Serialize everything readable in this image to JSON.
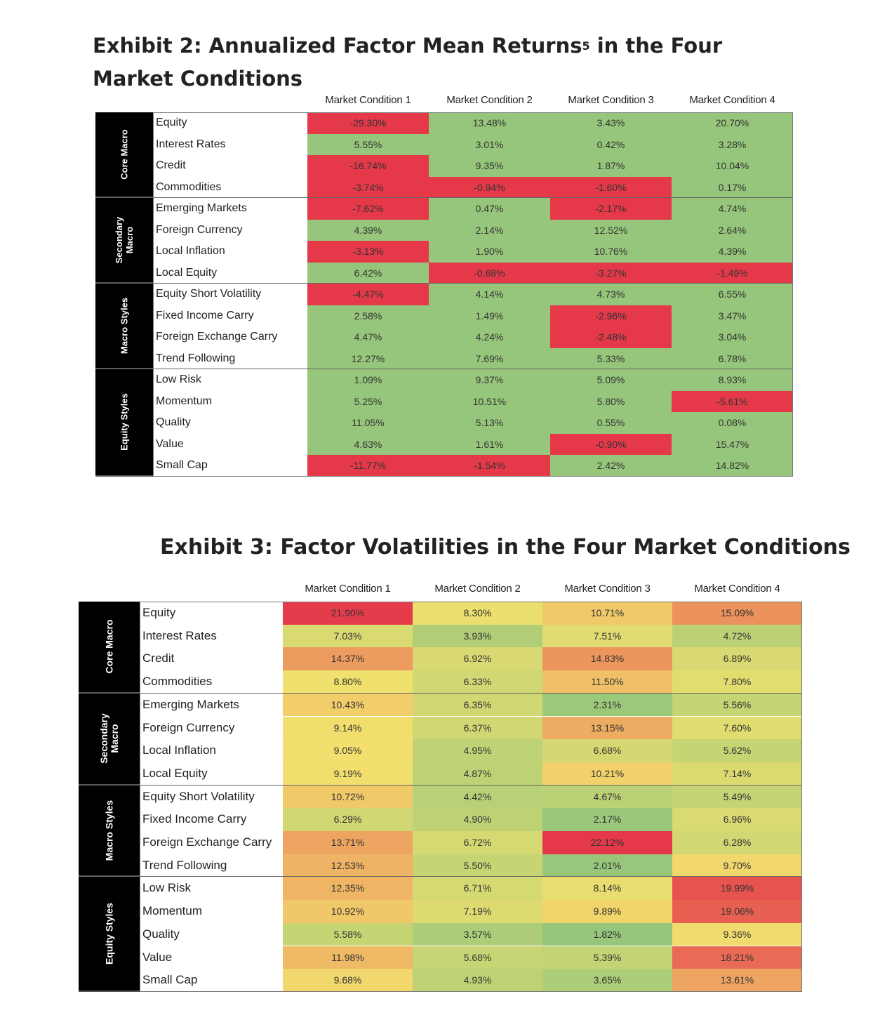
{
  "exhibit2": {
    "title": "Exhibit 2: Annualized Factor Mean Returns",
    "footnote_mark": "5",
    "title_suffix": " in the Four",
    "title_line2": "Market Conditions"
  },
  "exhibit3": {
    "title": "Exhibit 3: Factor Volatilities in the Four Market Conditions"
  },
  "colors": {
    "positive": "#96c67b",
    "negative": "#e5394a",
    "low": "#96c67b",
    "mid": "#f2e16e",
    "high": "#e5394a",
    "group_label_bg": "#000000"
  },
  "chart_data": [
    {
      "type": "table",
      "title": "Exhibit 2: Annualized Factor Mean Returns5 in the Four Market Conditions",
      "columns": [
        "Market Condition 1",
        "Market Condition 2",
        "Market Condition 3",
        "Market Condition 4"
      ],
      "groups": [
        {
          "name": "Core Macro",
          "rows": [
            {
              "label": "Equity",
              "values": [
                "-29.30%",
                "13.48%",
                "3.43%",
                "20.70%"
              ]
            },
            {
              "label": "Interest Rates",
              "values": [
                "5.55%",
                "3.01%",
                "0.42%",
                "3.28%"
              ]
            },
            {
              "label": "Credit",
              "values": [
                "-16.74%",
                "9.35%",
                "1.87%",
                "10.04%"
              ]
            },
            {
              "label": "Commodities",
              "values": [
                "-3.74%",
                "-0.94%",
                "-1.60%",
                "0.17%"
              ]
            }
          ]
        },
        {
          "name": "Secondary Macro",
          "rows": [
            {
              "label": "Emerging Markets",
              "values": [
                "-7.62%",
                "0.47%",
                "-2.17%",
                "4.74%"
              ]
            },
            {
              "label": "Foreign Currency",
              "values": [
                "4.39%",
                "2.14%",
                "12.52%",
                "2.64%"
              ]
            },
            {
              "label": "Local Inflation",
              "values": [
                "-3.13%",
                "1.90%",
                "10.76%",
                "4.39%"
              ]
            },
            {
              "label": "Local Equity",
              "values": [
                "6.42%",
                "-0.68%",
                "-3.27%",
                "-1.49%"
              ]
            }
          ]
        },
        {
          "name": "Macro Styles",
          "rows": [
            {
              "label": "Equity Short Volatility",
              "values": [
                "-4.47%",
                "4.14%",
                "4.73%",
                "6.55%"
              ]
            },
            {
              "label": "Fixed Income Carry",
              "values": [
                "2.58%",
                "1.49%",
                "-2.96%",
                "3.47%"
              ]
            },
            {
              "label": "Foreign Exchange Carry",
              "values": [
                "4.47%",
                "4.24%",
                "-2.48%",
                "3.04%"
              ]
            },
            {
              "label": "Trend Following",
              "values": [
                "12.27%",
                "7.69%",
                "5.33%",
                "6.78%"
              ]
            }
          ]
        },
        {
          "name": "Equity Styles",
          "rows": [
            {
              "label": "Low Risk",
              "values": [
                "1.09%",
                "9.37%",
                "5.09%",
                "8.93%"
              ]
            },
            {
              "label": "Momentum",
              "values": [
                "5.25%",
                "10.51%",
                "5.80%",
                "-5.61%"
              ]
            },
            {
              "label": "Quality",
              "values": [
                "11.05%",
                "5.13%",
                "0.55%",
                "0.08%"
              ]
            },
            {
              "label": "Value",
              "values": [
                "4.63%",
                "1.61%",
                "-0.90%",
                "15.47%"
              ]
            },
            {
              "label": "Small Cap",
              "values": [
                "-11.77%",
                "-1.54%",
                "2.42%",
                "14.82%"
              ]
            }
          ]
        }
      ]
    },
    {
      "type": "table",
      "title": "Exhibit 3: Factor Volatilities in the Four Market Conditions",
      "columns": [
        "Market Condition 1",
        "Market Condition 2",
        "Market Condition 3",
        "Market Condition 4"
      ],
      "groups": [
        {
          "name": "Core Macro",
          "rows": [
            {
              "label": "Equity",
              "values": [
                "21.90%",
                "8.30%",
                "10.71%",
                "15.09%"
              ]
            },
            {
              "label": "Interest Rates",
              "values": [
                "7.03%",
                "3.93%",
                "7.51%",
                "4.72%"
              ]
            },
            {
              "label": "Credit",
              "values": [
                "14.37%",
                "6.92%",
                "14.83%",
                "6.89%"
              ]
            },
            {
              "label": "Commodities",
              "values": [
                "8.80%",
                "6.33%",
                "11.50%",
                "7.80%"
              ]
            }
          ]
        },
        {
          "name": "Secondary Macro",
          "rows": [
            {
              "label": "Emerging Markets",
              "values": [
                "10.43%",
                "6.35%",
                "2.31%",
                "5.56%"
              ]
            },
            {
              "label": "Foreign Currency",
              "values": [
                "9.14%",
                "6.37%",
                "13.15%",
                "7.60%"
              ]
            },
            {
              "label": "Local Inflation",
              "values": [
                "9.05%",
                "4.95%",
                "6.68%",
                "5.62%"
              ]
            },
            {
              "label": "Local Equity",
              "values": [
                "9.19%",
                "4.87%",
                "10.21%",
                "7.14%"
              ]
            }
          ]
        },
        {
          "name": "Macro Styles",
          "rows": [
            {
              "label": "Equity Short Volatility",
              "values": [
                "10.72%",
                "4.42%",
                "4.67%",
                "5.49%"
              ]
            },
            {
              "label": "Fixed Income Carry",
              "values": [
                "6.29%",
                "4.90%",
                "2.17%",
                "6.96%"
              ]
            },
            {
              "label": "Foreign Exchange Carry",
              "values": [
                "13.71%",
                "6.72%",
                "22.12%",
                "6.28%"
              ]
            },
            {
              "label": "Trend Following",
              "values": [
                "12.53%",
                "5.50%",
                "2.01%",
                "9.70%"
              ]
            }
          ]
        },
        {
          "name": "Equity Styles",
          "rows": [
            {
              "label": "Low Risk",
              "values": [
                "12.35%",
                "6.71%",
                "8.14%",
                "19.99%"
              ]
            },
            {
              "label": "Momentum",
              "values": [
                "10.92%",
                "7.19%",
                "9.89%",
                "19.06%"
              ]
            },
            {
              "label": "Quality",
              "values": [
                "5.58%",
                "3.57%",
                "1.82%",
                "9.36%"
              ]
            },
            {
              "label": "Value",
              "values": [
                "11.98%",
                "5.68%",
                "5.39%",
                "18.21%"
              ]
            },
            {
              "label": "Small Cap",
              "values": [
                "9.68%",
                "4.93%",
                "3.65%",
                "13.61%"
              ]
            }
          ]
        }
      ]
    }
  ]
}
